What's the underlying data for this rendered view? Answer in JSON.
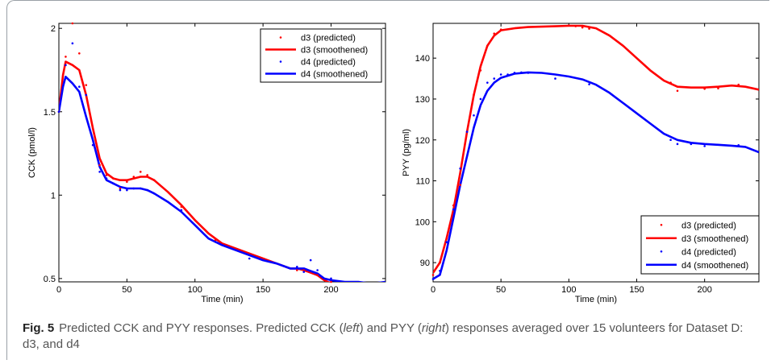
{
  "caption": {
    "label": "Fig. 5",
    "text_a": "Predicted CCK and PYY responses. Predicted CCK (",
    "em_left": "left",
    "text_b": ") and PYY (",
    "em_right": "right",
    "text_c": ") responses averaged over 15 volunteers for Dataset D: d3, and d4"
  },
  "colors": {
    "d3": "#ff0000",
    "d4": "#0000ff",
    "axis": "#000000"
  },
  "chart_data": [
    {
      "type": "line",
      "ylabel": "CCK (pmol/l)",
      "xlabel": "Time (min)",
      "xlim": [
        0,
        240
      ],
      "ylim": [
        0.48,
        2.03
      ],
      "xticks": [
        0,
        50,
        100,
        150,
        200
      ],
      "yticks": [
        0.5,
        1,
        1.5,
        2
      ],
      "ytick_labels": [
        "0.5",
        "1",
        "1.5",
        "2"
      ],
      "grid": false,
      "legend_position": "top-right",
      "series": [
        {
          "name": "d3 (predicted)",
          "style": "points",
          "x": [
            0,
            5,
            10,
            15,
            20,
            25,
            30,
            35,
            40,
            45,
            50,
            55,
            60,
            65,
            70,
            90,
            115,
            175,
            180,
            190,
            200
          ],
          "y": [
            1.5,
            1.83,
            2.03,
            1.85,
            1.66,
            1.3,
            1.18,
            1.12,
            1.1,
            1.04,
            1.08,
            1.11,
            1.14,
            1.12,
            1.09,
            0.93,
            0.73,
            0.55,
            0.55,
            0.52,
            0.48
          ]
        },
        {
          "name": "d3 (smoothened)",
          "style": "line",
          "x": [
            0,
            3,
            5,
            10,
            15,
            20,
            25,
            30,
            35,
            40,
            45,
            50,
            55,
            60,
            65,
            70,
            80,
            90,
            100,
            110,
            120,
            130,
            140,
            150,
            160,
            170,
            175,
            180,
            190,
            195,
            200,
            210,
            220,
            230,
            240
          ],
          "y": [
            1.5,
            1.72,
            1.8,
            1.78,
            1.75,
            1.6,
            1.4,
            1.22,
            1.13,
            1.1,
            1.09,
            1.09,
            1.1,
            1.11,
            1.11,
            1.09,
            1.02,
            0.94,
            0.85,
            0.77,
            0.71,
            0.68,
            0.65,
            0.62,
            0.59,
            0.56,
            0.56,
            0.55,
            0.52,
            0.49,
            0.47,
            0.47,
            0.46,
            0.46,
            0.47
          ]
        },
        {
          "name": "d4 (predicted)",
          "style": "points",
          "x": [
            0,
            5,
            10,
            15,
            20,
            25,
            30,
            35,
            40,
            45,
            50,
            55,
            60,
            65,
            70,
            90,
            115,
            140,
            175,
            180,
            185,
            190,
            200
          ],
          "y": [
            1.5,
            1.78,
            1.91,
            1.65,
            1.6,
            1.3,
            1.14,
            1.1,
            1.07,
            1.03,
            1.03,
            1.04,
            1.04,
            1.03,
            1.01,
            0.91,
            0.72,
            0.62,
            0.57,
            0.54,
            0.61,
            0.55,
            0.5
          ]
        },
        {
          "name": "d4 (smoothened)",
          "style": "line",
          "x": [
            0,
            3,
            5,
            10,
            15,
            20,
            25,
            30,
            35,
            40,
            45,
            50,
            55,
            60,
            65,
            70,
            80,
            90,
            100,
            110,
            120,
            130,
            140,
            150,
            160,
            170,
            175,
            180,
            190,
            195,
            200,
            210,
            220,
            230,
            240
          ],
          "y": [
            1.5,
            1.65,
            1.71,
            1.67,
            1.62,
            1.47,
            1.33,
            1.17,
            1.09,
            1.07,
            1.05,
            1.04,
            1.04,
            1.04,
            1.03,
            1.01,
            0.96,
            0.9,
            0.82,
            0.74,
            0.7,
            0.67,
            0.64,
            0.61,
            0.59,
            0.56,
            0.56,
            0.56,
            0.53,
            0.5,
            0.49,
            0.48,
            0.48,
            0.47,
            0.48
          ]
        }
      ]
    },
    {
      "type": "line",
      "ylabel": "PYY (pg/ml)",
      "xlabel": "Time (min)",
      "xlim": [
        0,
        240
      ],
      "ylim": [
        85.3,
        148.5
      ],
      "xticks": [
        0,
        50,
        100,
        150,
        200
      ],
      "yticks": [
        90,
        100,
        110,
        120,
        130,
        140
      ],
      "ytick_labels": [
        "90",
        "100",
        "110",
        "120",
        "130",
        "140"
      ],
      "grid": false,
      "legend_position": "bottom-right",
      "series": [
        {
          "name": "d3 (predicted)",
          "style": "points",
          "x": [
            0,
            5,
            10,
            15,
            20,
            25,
            30,
            35,
            40,
            45,
            50,
            100,
            105,
            110,
            115,
            175,
            180,
            200,
            210,
            225
          ],
          "y": [
            87,
            90,
            96,
            104,
            109,
            122,
            131,
            137,
            143,
            146,
            147,
            148,
            147.8,
            147.5,
            147.2,
            134,
            132,
            132.5,
            132.6,
            133.5
          ]
        },
        {
          "name": "d3 (smoothened)",
          "style": "line",
          "x": [
            0,
            5,
            10,
            15,
            20,
            25,
            30,
            35,
            40,
            45,
            50,
            60,
            70,
            80,
            90,
            100,
            110,
            120,
            130,
            140,
            150,
            160,
            170,
            180,
            190,
            200,
            210,
            220,
            230,
            240
          ],
          "y": [
            87.5,
            90,
            96,
            103,
            112,
            122,
            131,
            138,
            143,
            145.5,
            146.8,
            147.3,
            147.6,
            147.7,
            147.8,
            147.9,
            147.9,
            147.3,
            145.5,
            143,
            140,
            137,
            134.5,
            133,
            132.8,
            132.8,
            133,
            133.3,
            133,
            132.3
          ]
        },
        {
          "name": "d4 (predicted)",
          "style": "points",
          "x": [
            0,
            5,
            10,
            15,
            20,
            25,
            30,
            35,
            40,
            45,
            50,
            55,
            60,
            65,
            70,
            90,
            115,
            175,
            180,
            190,
            200,
            225
          ],
          "y": [
            86,
            88,
            95,
            103,
            113,
            122,
            126,
            130,
            134,
            135,
            136,
            136,
            136.4,
            136.5,
            136.4,
            135,
            133.6,
            120,
            119,
            119,
            118.5,
            118.7
          ]
        },
        {
          "name": "d4 (smoothened)",
          "style": "line",
          "x": [
            0,
            5,
            10,
            15,
            20,
            25,
            30,
            35,
            40,
            45,
            50,
            60,
            70,
            80,
            90,
            100,
            110,
            120,
            130,
            140,
            150,
            160,
            170,
            180,
            190,
            200,
            210,
            220,
            230,
            240
          ],
          "y": [
            86,
            87,
            93,
            101,
            109,
            116,
            123,
            128.5,
            132,
            134,
            135.2,
            136.2,
            136.5,
            136.4,
            136,
            135.5,
            134.8,
            133.5,
            131.5,
            129,
            126.5,
            124,
            121.5,
            120,
            119.3,
            119,
            118.8,
            118.6,
            118.3,
            117
          ]
        }
      ]
    }
  ]
}
